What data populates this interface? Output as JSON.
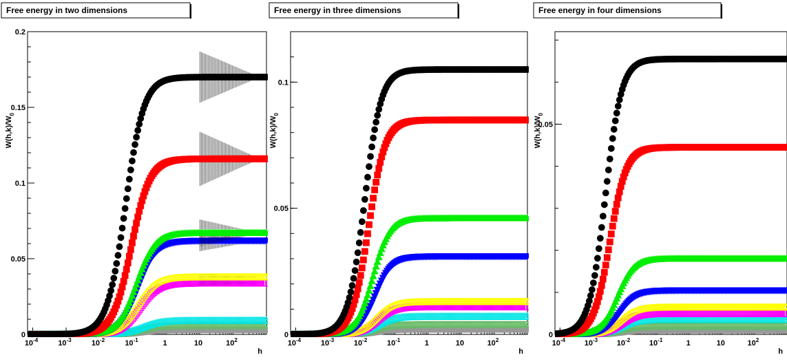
{
  "chart_data": [
    {
      "type": "scatter",
      "title": "Free energy in two dimensions",
      "xlabel": "h",
      "ylabel": "W(h,k)/W",
      "ylabel_sub": "0",
      "x_scale": "log",
      "xlim": [
        7e-05,
        1000
      ],
      "ylim": [
        0,
        0.2
      ],
      "x_ticks": [
        {
          "v": 0.0001,
          "base": "10",
          "exp": "-4"
        },
        {
          "v": 0.001,
          "base": "10",
          "exp": "-3"
        },
        {
          "v": 0.01,
          "base": "10",
          "exp": "-2"
        },
        {
          "v": 0.1,
          "base": "10",
          "exp": "-1"
        },
        {
          "v": 1,
          "base": "1",
          "exp": ""
        },
        {
          "v": 10,
          "base": "10",
          "exp": ""
        },
        {
          "v": 100,
          "base": "10",
          "exp": "2"
        }
      ],
      "y_ticks": [
        {
          "v": 0,
          "label": "0"
        },
        {
          "v": 0.05,
          "label": "0.05"
        },
        {
          "v": 0.1,
          "label": "0.1"
        },
        {
          "v": 0.15,
          "label": "0.15"
        },
        {
          "v": 0.2,
          "label": "0.2"
        }
      ],
      "series": [
        {
          "plateau": 0.17,
          "midpoint": 0.06,
          "width": 0.55,
          "color": "#000000",
          "marker": "circle",
          "error": 0.017
        },
        {
          "plateau": 0.116,
          "midpoint": 0.09,
          "width": 0.55,
          "color": "#ff0000",
          "marker": "square",
          "error": 0.018
        },
        {
          "plateau": 0.067,
          "midpoint": 0.13,
          "width": 0.55,
          "color": "#00ee00",
          "marker": "triangle-up",
          "error": 0.009
        },
        {
          "plateau": 0.062,
          "midpoint": 0.14,
          "width": 0.55,
          "color": "#0000ff",
          "marker": "triangle-down",
          "error": 0.007
        },
        {
          "plateau": 0.038,
          "midpoint": 0.15,
          "width": 0.55,
          "color": "#ffff00",
          "marker": "circle-open",
          "error": 0.002
        },
        {
          "plateau": 0.034,
          "midpoint": 0.16,
          "width": 0.55,
          "color": "#ff00ff",
          "marker": "square-open",
          "error": 0.002
        },
        {
          "plateau": 0.009,
          "midpoint": 0.2,
          "width": 0.55,
          "color": "#00e5e5",
          "marker": "triangle-up-open",
          "error": 0
        },
        {
          "plateau": 0.006,
          "midpoint": 0.2,
          "width": 0.55,
          "color": "#66bb66",
          "marker": "triangle-down-open",
          "error": 0
        },
        {
          "plateau": 0.003,
          "midpoint": 0.2,
          "width": 0.55,
          "color": "#999999",
          "marker": "circle",
          "error": 0
        }
      ]
    },
    {
      "type": "scatter",
      "title": "Free energy in three dimensions",
      "xlabel": "h",
      "ylabel": "W(h,k)/W",
      "ylabel_sub": "0",
      "x_scale": "log",
      "xlim": [
        7e-05,
        1000
      ],
      "ylim": [
        0,
        0.12
      ],
      "x_ticks": [
        {
          "v": 0.0001,
          "base": "10",
          "exp": "-4"
        },
        {
          "v": 0.001,
          "base": "10",
          "exp": "-3"
        },
        {
          "v": 0.01,
          "base": "10",
          "exp": "-2"
        },
        {
          "v": 0.1,
          "base": "10",
          "exp": "-1"
        },
        {
          "v": 1,
          "base": "1",
          "exp": ""
        },
        {
          "v": 10,
          "base": "10",
          "exp": ""
        },
        {
          "v": 100,
          "base": "10",
          "exp": "2"
        }
      ],
      "y_ticks": [
        {
          "v": 0,
          "label": "0"
        },
        {
          "v": 0.05,
          "label": "0.05"
        },
        {
          "v": 0.1,
          "label": "0.1"
        }
      ],
      "series": [
        {
          "plateau": 0.105,
          "midpoint": 0.012,
          "width": 0.5,
          "color": "#000000",
          "marker": "circle",
          "error": 0.001
        },
        {
          "plateau": 0.085,
          "midpoint": 0.016,
          "width": 0.5,
          "color": "#ff0000",
          "marker": "square",
          "error": 0
        },
        {
          "plateau": 0.046,
          "midpoint": 0.022,
          "width": 0.5,
          "color": "#00ee00",
          "marker": "triangle-up",
          "error": 0
        },
        {
          "plateau": 0.031,
          "midpoint": 0.025,
          "width": 0.5,
          "color": "#0000ff",
          "marker": "triangle-down",
          "error": 0
        },
        {
          "plateau": 0.013,
          "midpoint": 0.03,
          "width": 0.5,
          "color": "#ffff00",
          "marker": "circle-open",
          "error": 0
        },
        {
          "plateau": 0.011,
          "midpoint": 0.03,
          "width": 0.5,
          "color": "#ff00ff",
          "marker": "square-open",
          "error": 0
        },
        {
          "plateau": 0.007,
          "midpoint": 0.03,
          "width": 0.5,
          "color": "#00e5e5",
          "marker": "triangle-up-open",
          "error": 0
        },
        {
          "plateau": 0.004,
          "midpoint": 0.03,
          "width": 0.5,
          "color": "#66bb66",
          "marker": "triangle-down-open",
          "error": 0
        },
        {
          "plateau": 0.002,
          "midpoint": 0.03,
          "width": 0.5,
          "color": "#999999",
          "marker": "circle",
          "error": 0
        }
      ]
    },
    {
      "type": "scatter",
      "title": "Free energy in four dimensions",
      "xlabel": "h",
      "ylabel": "W(h,k)/W",
      "ylabel_sub": "0",
      "x_scale": "log",
      "xlim": [
        7e-05,
        1000
      ],
      "ylim": [
        0,
        0.072
      ],
      "x_ticks": [
        {
          "v": 0.0001,
          "base": "10",
          "exp": "-4"
        },
        {
          "v": 0.001,
          "base": "10",
          "exp": "-3"
        },
        {
          "v": 0.01,
          "base": "10",
          "exp": "-2"
        },
        {
          "v": 0.1,
          "base": "10",
          "exp": "-1"
        },
        {
          "v": 1,
          "base": "1",
          "exp": ""
        },
        {
          "v": 10,
          "base": "10",
          "exp": ""
        },
        {
          "v": 100,
          "base": "10",
          "exp": "2"
        }
      ],
      "y_ticks": [
        {
          "v": 0,
          "label": "0"
        },
        {
          "v": 0.05,
          "label": "0.05"
        }
      ],
      "series": [
        {
          "plateau": 0.0655,
          "midpoint": 0.0025,
          "width": 0.5,
          "color": "#000000",
          "marker": "circle",
          "error": 0.0005
        },
        {
          "plateau": 0.0445,
          "midpoint": 0.0035,
          "width": 0.5,
          "color": "#ff0000",
          "marker": "square",
          "error": 0
        },
        {
          "plateau": 0.018,
          "midpoint": 0.006,
          "width": 0.5,
          "color": "#00ee00",
          "marker": "triangle-up",
          "error": 0
        },
        {
          "plateau": 0.0105,
          "midpoint": 0.007,
          "width": 0.5,
          "color": "#0000ff",
          "marker": "triangle-down",
          "error": 0
        },
        {
          "plateau": 0.0065,
          "midpoint": 0.008,
          "width": 0.5,
          "color": "#ffff00",
          "marker": "circle-open",
          "error": 0
        },
        {
          "plateau": 0.005,
          "midpoint": 0.008,
          "width": 0.5,
          "color": "#ff00ff",
          "marker": "square-open",
          "error": 0
        },
        {
          "plateau": 0.0035,
          "midpoint": 0.008,
          "width": 0.5,
          "color": "#00e5e5",
          "marker": "triangle-up-open",
          "error": 0
        },
        {
          "plateau": 0.002,
          "midpoint": 0.008,
          "width": 0.5,
          "color": "#66bb66",
          "marker": "triangle-down-open",
          "error": 0
        },
        {
          "plateau": 0.001,
          "midpoint": 0.008,
          "width": 0.5,
          "color": "#999999",
          "marker": "circle",
          "error": 0
        }
      ]
    }
  ]
}
